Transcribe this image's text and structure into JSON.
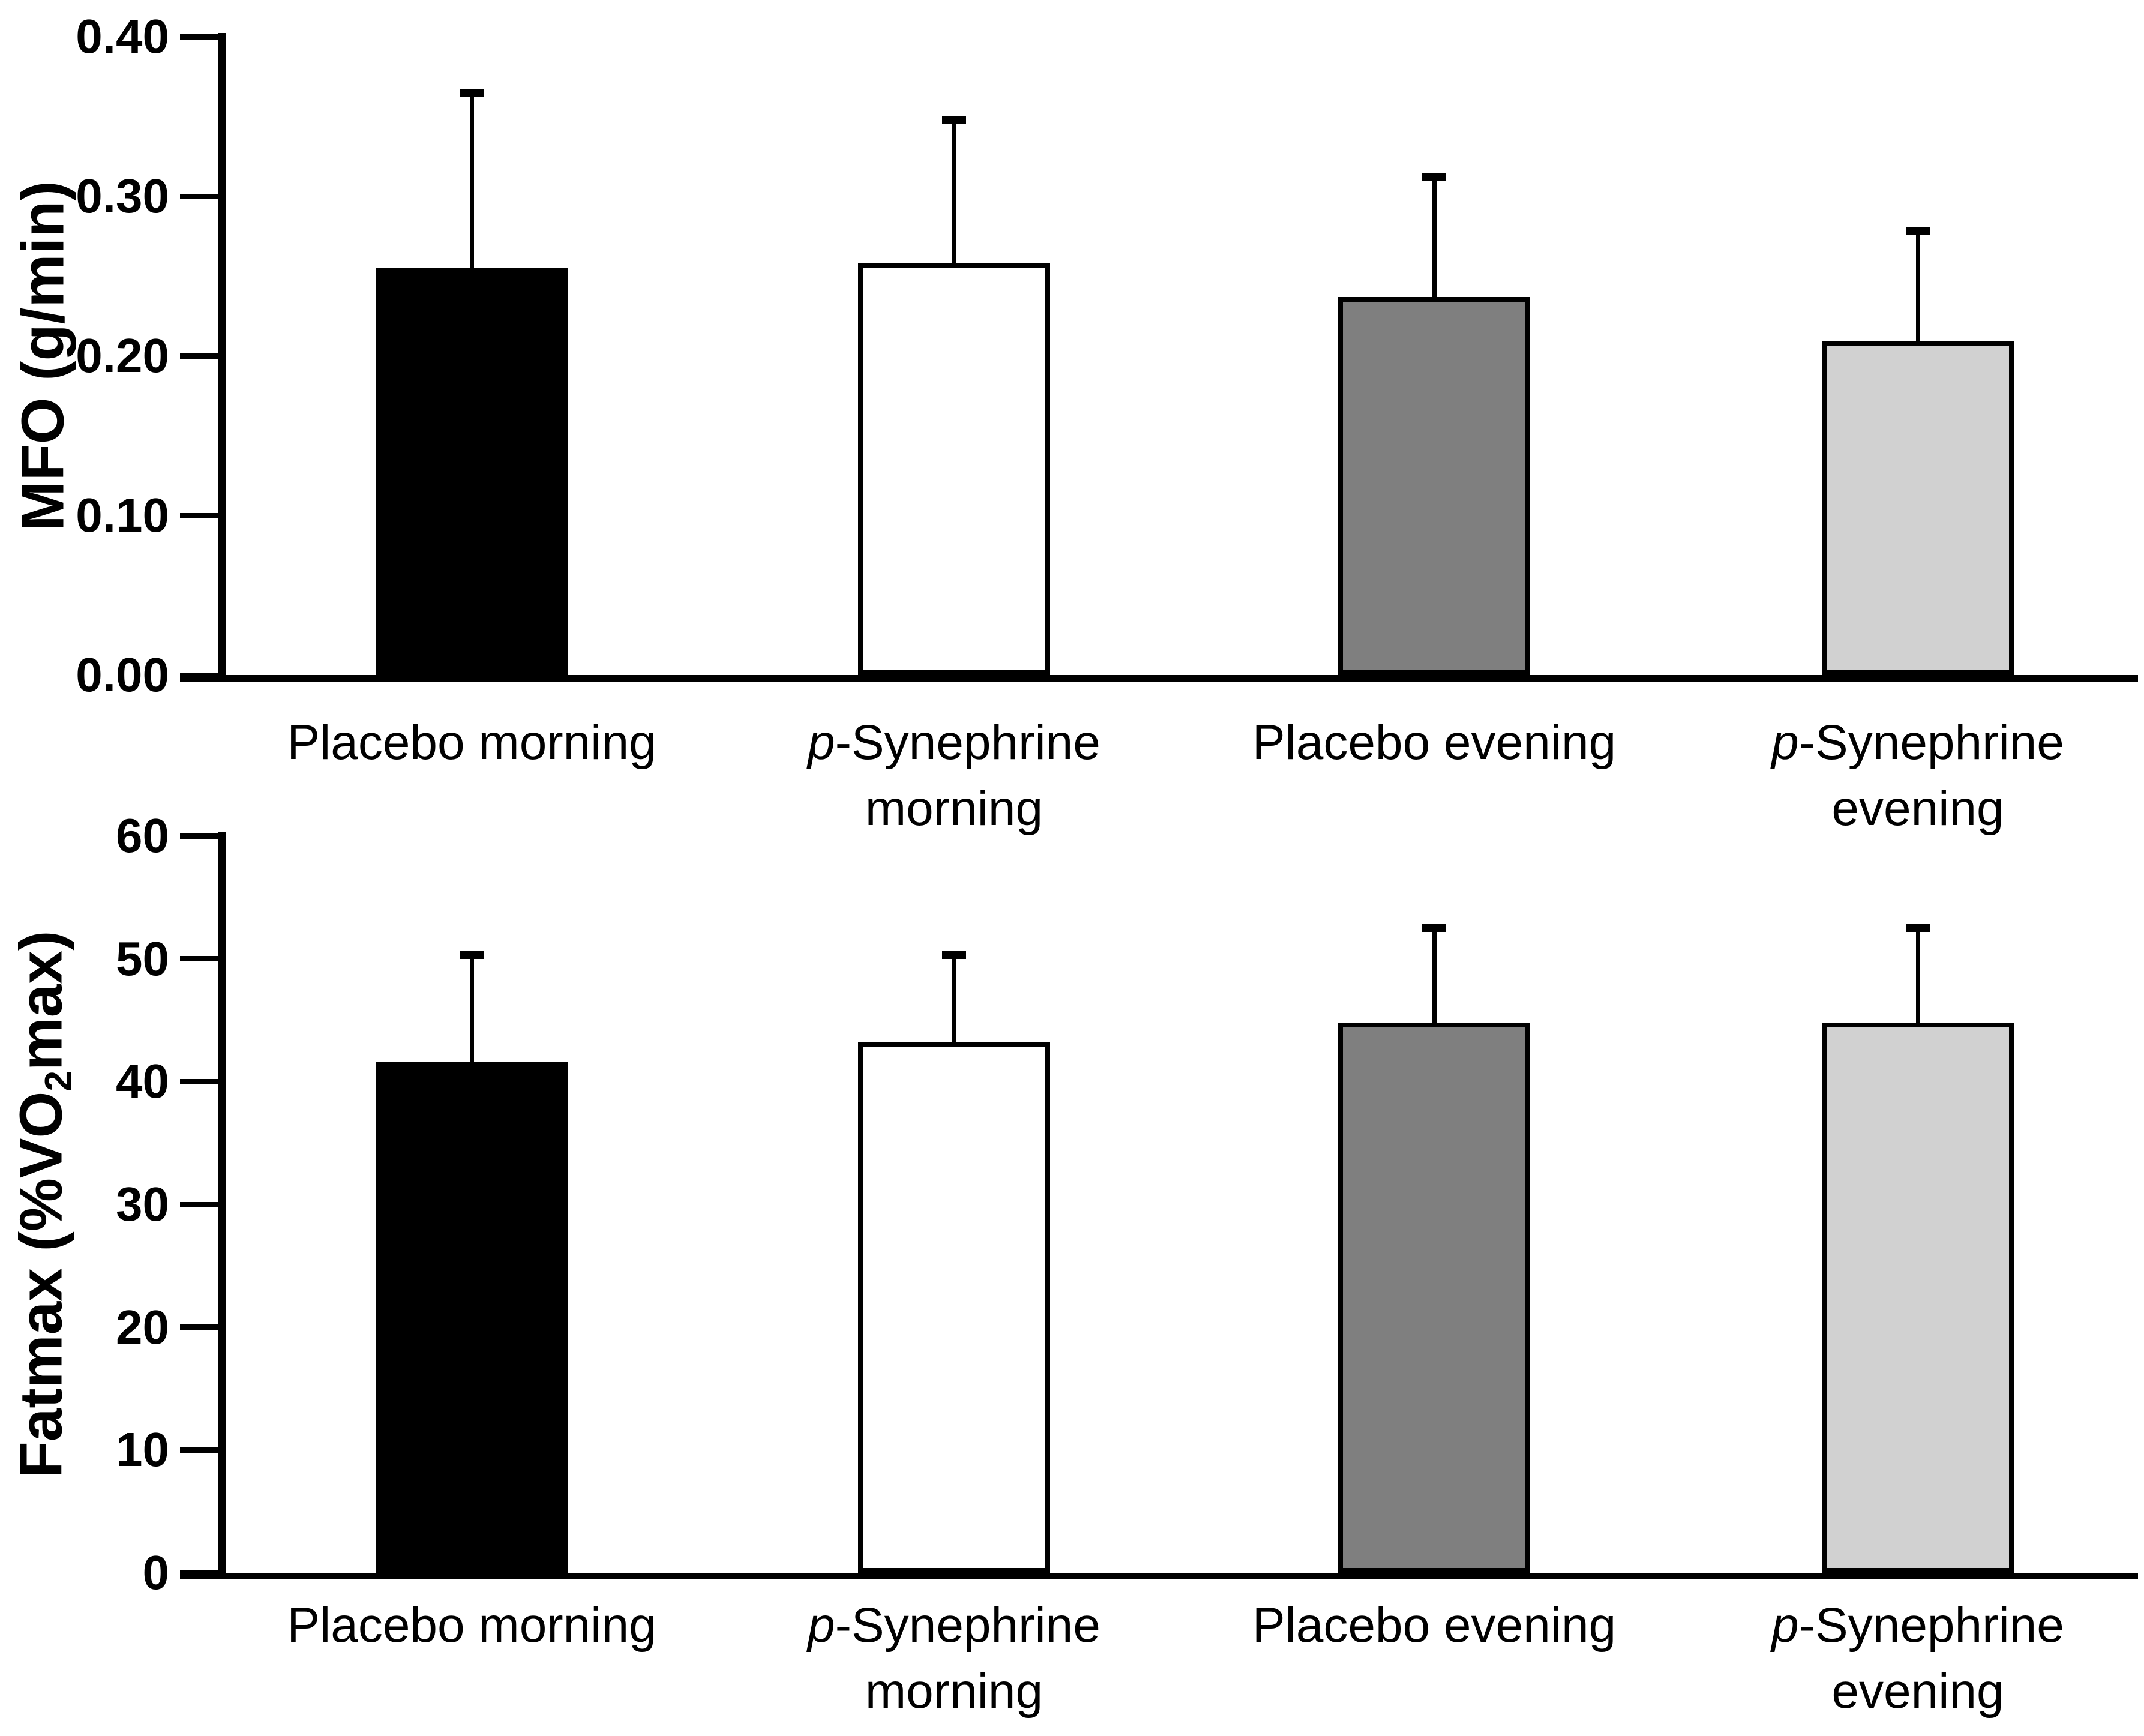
{
  "figure_background": "#ffffff",
  "chart_data": [
    {
      "type": "bar",
      "title": "",
      "xlabel": "",
      "ylabel": "MFO (g/min)",
      "ylabel_segments": [
        {
          "text": "MFO (g/min)",
          "sub": false
        }
      ],
      "categories_text": [
        "Placebo morning",
        "p-Synephrine morning",
        "Placebo evening",
        "p-Synephrine evening"
      ],
      "categories": [
        {
          "lines": [
            [
              {
                "text": "Placebo morning",
                "italic": false
              }
            ]
          ]
        },
        {
          "lines": [
            [
              {
                "text": "p",
                "italic": true
              },
              {
                "text": "-Synephrine",
                "italic": false
              }
            ],
            [
              {
                "text": "morning",
                "italic": false
              }
            ]
          ]
        },
        {
          "lines": [
            [
              {
                "text": "Placebo evening",
                "italic": false
              }
            ]
          ]
        },
        {
          "lines": [
            [
              {
                "text": "p",
                "italic": true
              },
              {
                "text": "-Synephrine",
                "italic": false
              }
            ],
            [
              {
                "text": "evening",
                "italic": false
              }
            ]
          ]
        }
      ],
      "values": [
        0.255,
        0.258,
        0.237,
        0.209
      ],
      "error_sd_up": [
        0.11,
        0.09,
        0.075,
        0.069
      ],
      "ylim": [
        0,
        0.4
      ],
      "yticks": [
        0,
        0.1,
        0.2,
        0.3,
        0.4
      ],
      "ytick_labels": [
        "0.00",
        "0.10",
        "0.20",
        "0.30",
        "0.40"
      ],
      "bar_colors": [
        "#000000",
        "#FFFFFF",
        "#7F7F7F",
        "#D1D1D1"
      ],
      "bar_border_color": "#000000",
      "grid": false,
      "legend": "none"
    },
    {
      "type": "bar",
      "title": "",
      "xlabel": "",
      "ylabel": "Fatmax (%VO2max)",
      "ylabel_segments": [
        {
          "text": "Fatmax (%VO",
          "sub": false
        },
        {
          "text": "2",
          "sub": true
        },
        {
          "text": "max)",
          "sub": false
        }
      ],
      "categories_text": [
        "Placebo morning",
        "p-Synephrine morning",
        "Placebo evening",
        "p-Synephrine evening"
      ],
      "categories": [
        {
          "lines": [
            [
              {
                "text": "Placebo morning",
                "italic": false
              }
            ]
          ]
        },
        {
          "lines": [
            [
              {
                "text": "p",
                "italic": true
              },
              {
                "text": "-Synephrine",
                "italic": false
              }
            ],
            [
              {
                "text": "morning",
                "italic": false
              }
            ]
          ]
        },
        {
          "lines": [
            [
              {
                "text": "Placebo evening",
                "italic": false
              }
            ]
          ]
        },
        {
          "lines": [
            [
              {
                "text": "p",
                "italic": true
              },
              {
                "text": "-Synephrine",
                "italic": false
              }
            ],
            [
              {
                "text": "evening",
                "italic": false
              }
            ]
          ]
        }
      ],
      "values": [
        41.6,
        43.2,
        44.8,
        44.8
      ],
      "error_sd_up": [
        8.7,
        7.1,
        7.7,
        7.7
      ],
      "ylim": [
        0,
        60
      ],
      "yticks": [
        0,
        10,
        20,
        30,
        40,
        50,
        60
      ],
      "ytick_labels": [
        "0",
        "10",
        "20",
        "30",
        "40",
        "50",
        "60"
      ],
      "bar_colors": [
        "#000000",
        "#FFFFFF",
        "#7F7F7F",
        "#D1D1D1"
      ],
      "bar_border_color": "#000000",
      "grid": false,
      "legend": "none"
    }
  ]
}
